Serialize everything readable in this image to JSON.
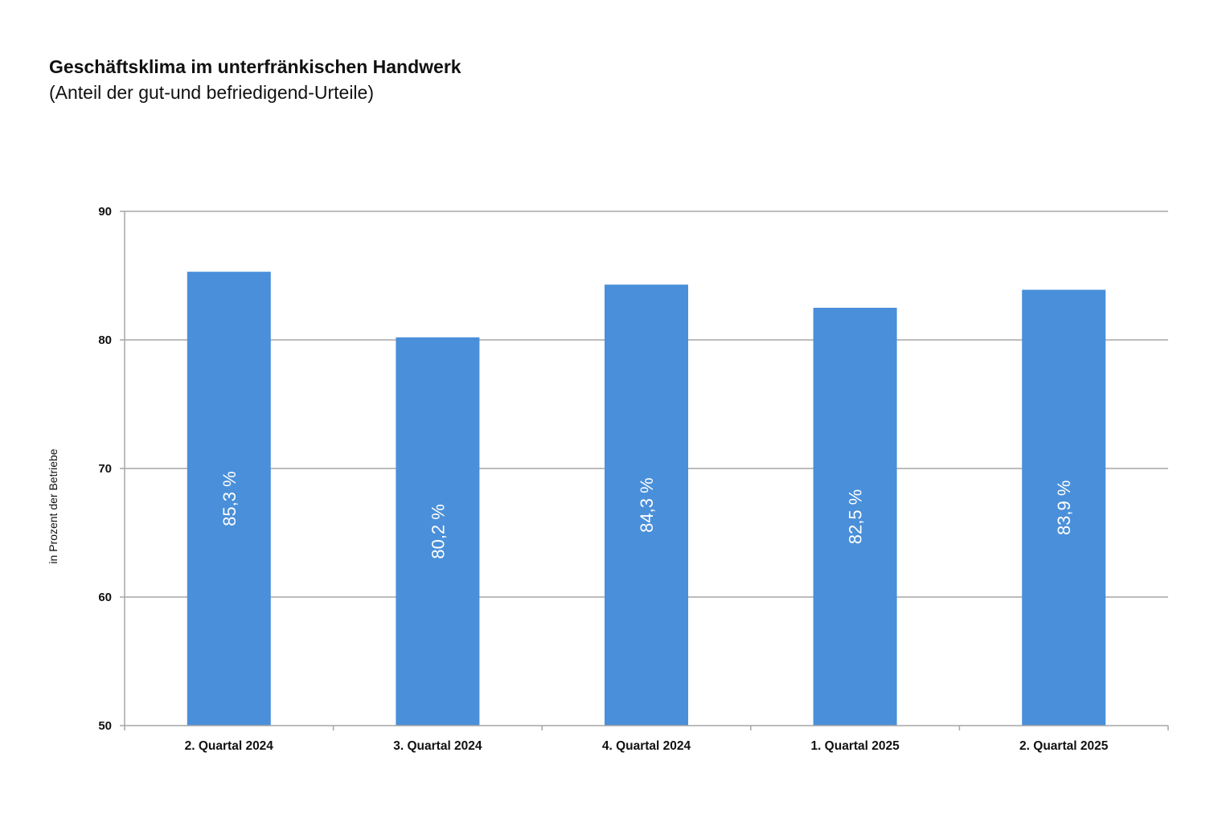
{
  "chart_data": {
    "type": "bar",
    "title": "Geschäftsklima im unterfränkischen Handwerk",
    "subtitle": "(Anteil der gut-und befriedigend-Urteile)",
    "xlabel": "",
    "ylabel": "in Prozent der Betriebe",
    "categories": [
      "2. Quartal 2024",
      "3. Quartal 2024",
      "4. Quartal 2024",
      "1. Quartal 2025",
      "2. Quartal 2025"
    ],
    "values": [
      85.3,
      80.2,
      84.3,
      82.5,
      83.9
    ],
    "data_labels": [
      "85,3 %",
      "80,2 %",
      "84,3 %",
      "82,5 %",
      "83,9 %"
    ],
    "ylim": [
      50,
      90
    ],
    "yticks": [
      50,
      60,
      70,
      80,
      90
    ],
    "grid": true,
    "legend": "none",
    "bar_color": "#4a8fd9"
  }
}
